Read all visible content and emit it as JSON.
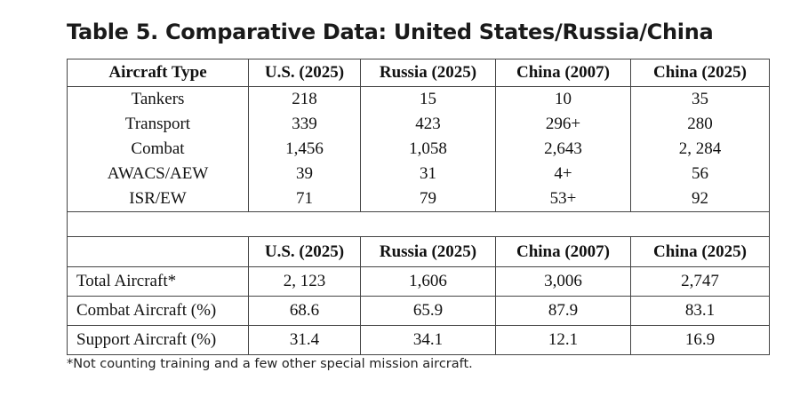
{
  "title": "Table 5. Comparative Data: United States/Russia/China",
  "table1": {
    "headers": [
      "Aircraft Type",
      "U.S. (2025)",
      "Russia (2025)",
      "China (2007)",
      "China (2025)"
    ],
    "rows": [
      [
        "Tankers",
        "218",
        "15",
        "10",
        "35"
      ],
      [
        "Transport",
        "339",
        "423",
        "296+",
        "280"
      ],
      [
        "Combat",
        "1,456",
        "1,058",
        "2,643",
        "2, 284"
      ],
      [
        "AWACS/AEW",
        "39",
        "31",
        "4+",
        "56"
      ],
      [
        "ISR/EW",
        "71",
        "79",
        "53+",
        "92"
      ]
    ]
  },
  "table2": {
    "headers": [
      "",
      "U.S. (2025)",
      "Russia (2025)",
      "China (2007)",
      "China (2025)"
    ],
    "rows": [
      [
        "Total Aircraft*",
        "2, 123",
        "1,606",
        "3,006",
        "2,747"
      ],
      [
        "Combat Aircraft (%)",
        "68.6",
        "65.9",
        "87.9",
        "83.1"
      ],
      [
        "Support Aircraft (%)",
        "31.4",
        "34.1",
        "12.1",
        "16.9"
      ]
    ]
  },
  "footnote": "*Not counting training and a few other special mission aircraft."
}
